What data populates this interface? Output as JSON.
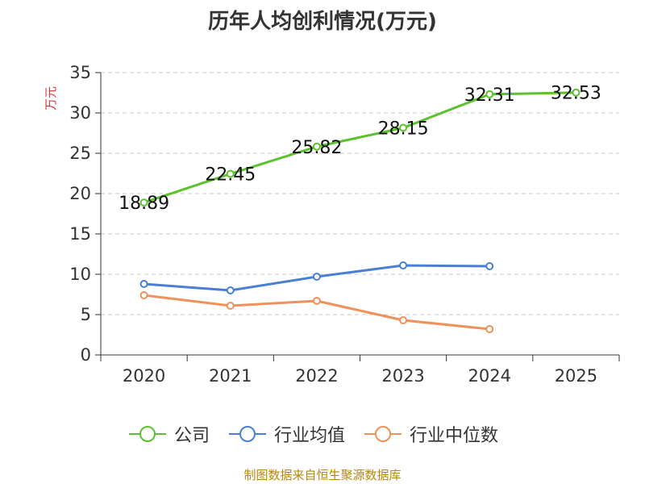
{
  "title": "历年人均创利情况(万元)",
  "source": "制图数据来自恒生聚源数据库",
  "chart_data": {
    "type": "line",
    "title": "历年人均创利情况(万元)",
    "ylabel": "万元",
    "xlabel": "",
    "ylim": [
      0,
      35
    ],
    "yticks": [
      0,
      5,
      10,
      15,
      20,
      25,
      30,
      35
    ],
    "categories": [
      "2020",
      "2021",
      "2022",
      "2023",
      "2024",
      "2025"
    ],
    "grid": true,
    "legend_position": "bottom",
    "series": [
      {
        "name": "公司",
        "color": "#5cc22c",
        "values": [
          18.89,
          22.45,
          25.82,
          28.15,
          32.31,
          32.53
        ],
        "labels": [
          "18.89",
          "22.45",
          "25.82",
          "28.15",
          "32.31",
          "32.53"
        ]
      },
      {
        "name": "行业均值",
        "color": "#4a7fd6",
        "values": [
          8.8,
          8.0,
          9.7,
          11.1,
          11.0,
          null
        ]
      },
      {
        "name": "行业中位数",
        "color": "#f0905a",
        "values": [
          7.4,
          6.1,
          6.7,
          4.3,
          3.2,
          null
        ]
      }
    ]
  }
}
